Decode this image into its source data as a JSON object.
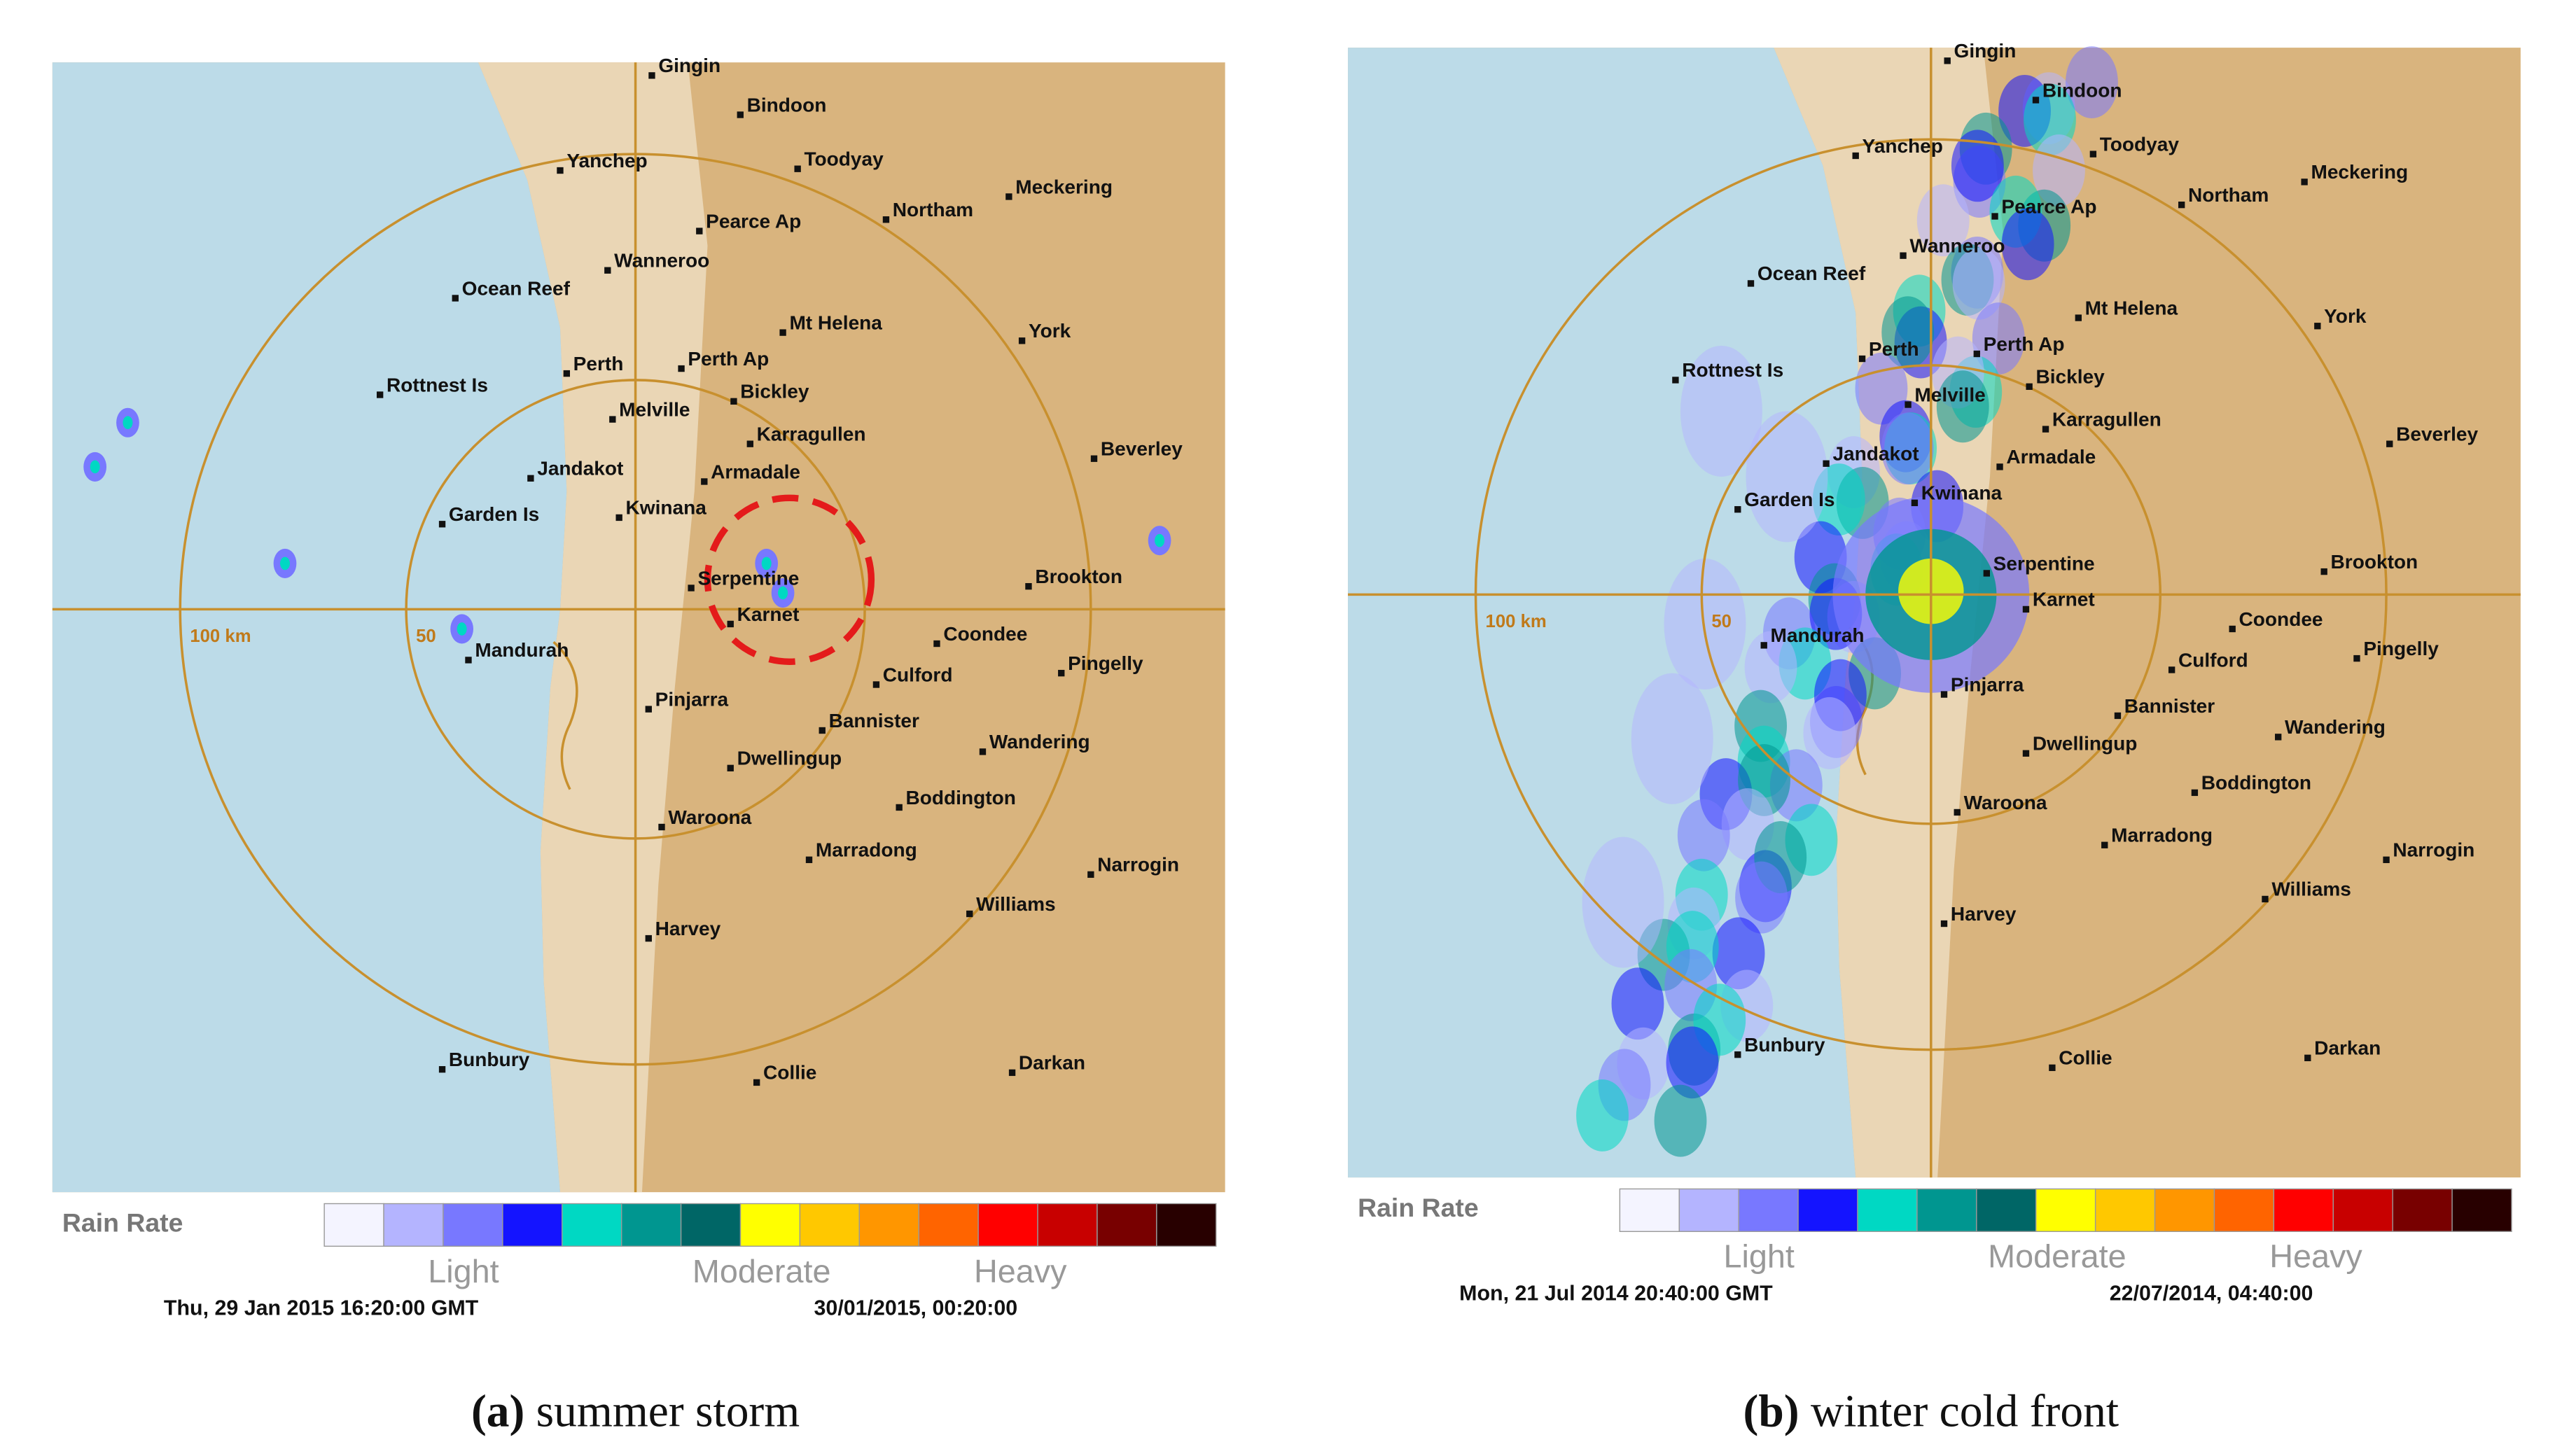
{
  "legend_colors": [
    "#f4f4ff",
    "#b4b4ff",
    "#7878ff",
    "#1414ff",
    "#00d8c3",
    "#009690",
    "#006666",
    "#ffff00",
    "#ffc800",
    "#ff9600",
    "#ff6400",
    "#ff0000",
    "#c80000",
    "#780000",
    "#280000"
  ],
  "panels": [
    {
      "towns": [
        "Gingin",
        "Bindoon",
        "Yanchep",
        "Toodyay",
        "Pearce Ap",
        "Northam",
        "Meckering",
        "Wanneroo",
        "Ocean Reef",
        "Mt Helena",
        "York",
        "Perth",
        "Perth Ap",
        "Bickley",
        "Rottnest Is",
        "Melville",
        "Karragullen",
        "Beverley",
        "Jandakot",
        "Armadale",
        "Garden Is",
        "Kwinana",
        "Serpentine",
        "Brookton",
        "Karnet",
        "Mandurah",
        "Coondee",
        "Pingelly",
        "Culford",
        "Pinjarra",
        "Bannister",
        "Wandering",
        "Dwellingup",
        "Boddington",
        "Waroona",
        "Marradong",
        "Narrogin",
        "Williams",
        "Harvey",
        "Bunbury",
        "Collie",
        "Darkan"
      ],
      "range_labels": [
        "100 km",
        "50"
      ],
      "legend": {
        "title": "Rain Rate",
        "levels": [
          "Light",
          "Moderate",
          "Heavy"
        ]
      },
      "timestamps": [
        "Thu, 29 Jan 2015 16:20:00 GMT",
        "30/01/2015, 00:20:00"
      ],
      "caption": {
        "label": "(a)",
        "text": "summer storm"
      }
    },
    {
      "towns": [
        "Gingin",
        "Bindoon",
        "Yanchep",
        "Toodyay",
        "Pearce Ap",
        "Northam",
        "Meckering",
        "Wanneroo",
        "Ocean Reef",
        "Mt Helena",
        "York",
        "Perth",
        "Perth Ap",
        "Bickley",
        "Rottnest Is",
        "Melville",
        "Karragullen",
        "Beverley",
        "Jandakot",
        "Armadale",
        "Garden Is",
        "Kwinana",
        "Serpentine",
        "Brookton",
        "Karnet",
        "Mandurah",
        "Coondee",
        "Pingelly",
        "Culford",
        "Pinjarra",
        "Bannister",
        "Wandering",
        "Dwellingup",
        "Boddington",
        "Waroona",
        "Marradong",
        "Narrogin",
        "Williams",
        "Harvey",
        "Bunbury",
        "Collie",
        "Darkan"
      ],
      "range_labels": [
        "100 km",
        "50"
      ],
      "legend": {
        "title": "Rain Rate",
        "levels": [
          "Light",
          "Moderate",
          "Heavy"
        ]
      },
      "timestamps": [
        "Mon, 21 Jul 2014 20:40:00 GMT",
        "22/07/2014, 04:40:00"
      ],
      "caption": {
        "label": "(b)",
        "text": "winter cold front"
      }
    }
  ]
}
